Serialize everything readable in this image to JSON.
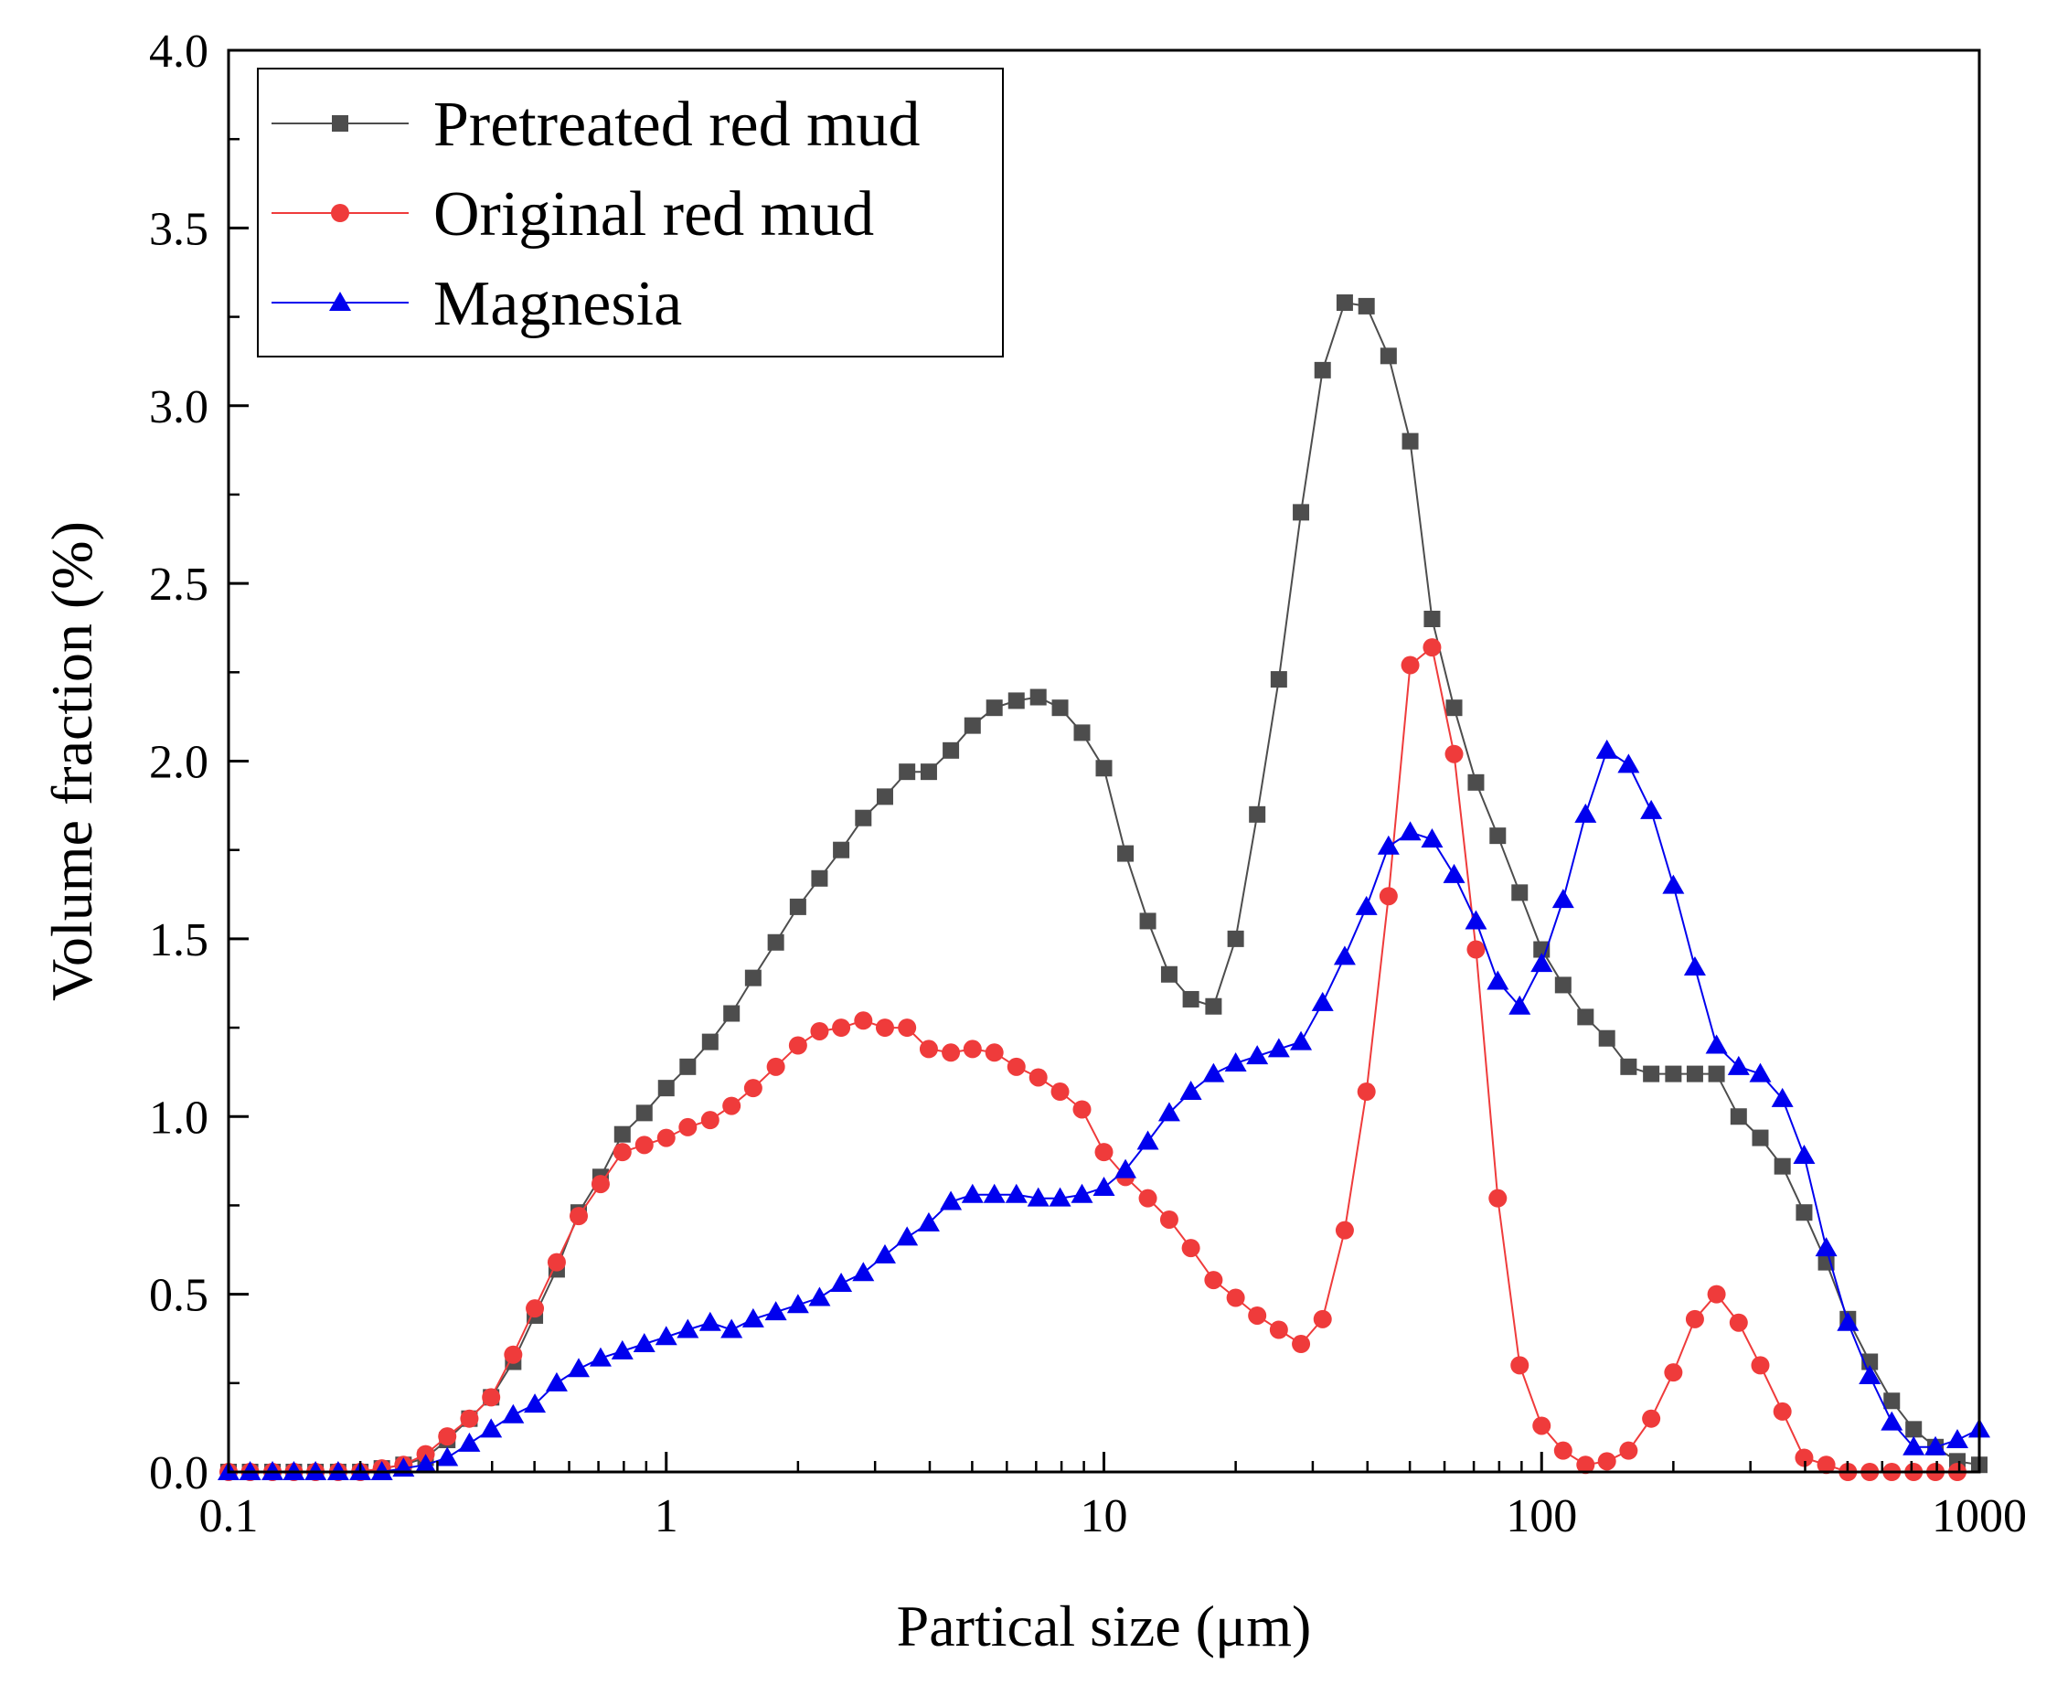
{
  "chart_data": {
    "type": "line",
    "title": "",
    "xlabel": "Partical size (μm)",
    "ylabel": "Volume fraction (%)",
    "xscale": "log",
    "xlim": [
      0.1,
      1000
    ],
    "ylim": [
      0,
      4.0
    ],
    "xticks": [
      0.1,
      1,
      10,
      100,
      1000
    ],
    "xtick_labels": [
      "0.1",
      "1",
      "10",
      "100",
      "1000"
    ],
    "yticks": [
      0,
      0.5,
      1.0,
      1.5,
      2.0,
      2.5,
      3.0,
      3.5,
      4.0
    ],
    "ytick_labels": [
      "0.0",
      "0.5",
      "1.0",
      "1.5",
      "2.0",
      "2.5",
      "3.0",
      "3.5",
      "4.0"
    ],
    "grid": false,
    "legend_position": "top-left",
    "series": [
      {
        "name": "Pretreated red mud",
        "color": "#4d4d4d",
        "marker": "square",
        "points": [
          [
            0.1,
            0
          ],
          [
            0.112,
            0
          ],
          [
            0.126,
            0
          ],
          [
            0.141,
            0
          ],
          [
            0.158,
            0
          ],
          [
            0.178,
            0
          ],
          [
            0.2,
            0
          ],
          [
            0.224,
            0.01
          ],
          [
            0.251,
            0.02
          ],
          [
            0.282,
            0.04
          ],
          [
            0.316,
            0.09
          ],
          [
            0.355,
            0.15
          ],
          [
            0.398,
            0.21
          ],
          [
            0.447,
            0.31
          ],
          [
            0.501,
            0.44
          ],
          [
            0.562,
            0.57
          ],
          [
            0.631,
            0.73
          ],
          [
            0.708,
            0.83
          ],
          [
            0.794,
            0.95
          ],
          [
            0.891,
            1.01
          ],
          [
            1,
            1.08
          ],
          [
            1.12,
            1.14
          ],
          [
            1.26,
            1.21
          ],
          [
            1.41,
            1.29
          ],
          [
            1.58,
            1.39
          ],
          [
            1.78,
            1.49
          ],
          [
            2,
            1.59
          ],
          [
            2.24,
            1.67
          ],
          [
            2.51,
            1.75
          ],
          [
            2.82,
            1.84
          ],
          [
            3.16,
            1.9
          ],
          [
            3.55,
            1.97
          ],
          [
            3.98,
            1.97
          ],
          [
            4.47,
            2.03
          ],
          [
            5.01,
            2.1
          ],
          [
            5.62,
            2.15
          ],
          [
            6.31,
            2.17
          ],
          [
            7.08,
            2.18
          ],
          [
            7.94,
            2.15
          ],
          [
            8.91,
            2.08
          ],
          [
            10,
            1.98
          ],
          [
            11.2,
            1.74
          ],
          [
            12.6,
            1.55
          ],
          [
            14.1,
            1.4
          ],
          [
            15.8,
            1.33
          ],
          [
            17.8,
            1.31
          ],
          [
            20,
            1.5
          ],
          [
            22.4,
            1.85
          ],
          [
            25.1,
            2.23
          ],
          [
            28.2,
            2.7
          ],
          [
            31.6,
            3.1
          ],
          [
            35.5,
            3.29
          ],
          [
            39.8,
            3.28
          ],
          [
            44.7,
            3.14
          ],
          [
            50.1,
            2.9
          ],
          [
            56.2,
            2.4
          ],
          [
            63.1,
            2.15
          ],
          [
            70.8,
            1.94
          ],
          [
            79.4,
            1.79
          ],
          [
            89.1,
            1.63
          ],
          [
            100,
            1.47
          ],
          [
            112,
            1.37
          ],
          [
            126,
            1.28
          ],
          [
            141,
            1.22
          ],
          [
            158,
            1.14
          ],
          [
            178,
            1.12
          ],
          [
            200,
            1.12
          ],
          [
            224,
            1.12
          ],
          [
            251,
            1.12
          ],
          [
            282,
            1.0
          ],
          [
            316,
            0.94
          ],
          [
            355,
            0.86
          ],
          [
            398,
            0.73
          ],
          [
            447,
            0.59
          ],
          [
            501,
            0.43
          ],
          [
            562,
            0.31
          ],
          [
            631,
            0.2
          ],
          [
            708,
            0.12
          ],
          [
            794,
            0.07
          ],
          [
            891,
            0.03
          ],
          [
            1000,
            0.02
          ]
        ]
      },
      {
        "name": "Original red mud",
        "color": "#ef3b3b",
        "marker": "circle",
        "points": [
          [
            0.1,
            0
          ],
          [
            0.112,
            0
          ],
          [
            0.126,
            0
          ],
          [
            0.141,
            0
          ],
          [
            0.158,
            0
          ],
          [
            0.178,
            0
          ],
          [
            0.2,
            0
          ],
          [
            0.224,
            0.01
          ],
          [
            0.251,
            0.02
          ],
          [
            0.282,
            0.05
          ],
          [
            0.316,
            0.1
          ],
          [
            0.355,
            0.15
          ],
          [
            0.398,
            0.21
          ],
          [
            0.447,
            0.33
          ],
          [
            0.501,
            0.46
          ],
          [
            0.562,
            0.59
          ],
          [
            0.631,
            0.72
          ],
          [
            0.708,
            0.81
          ],
          [
            0.794,
            0.9
          ],
          [
            0.891,
            0.92
          ],
          [
            1,
            0.94
          ],
          [
            1.12,
            0.97
          ],
          [
            1.26,
            0.99
          ],
          [
            1.41,
            1.03
          ],
          [
            1.58,
            1.08
          ],
          [
            1.78,
            1.14
          ],
          [
            2,
            1.2
          ],
          [
            2.24,
            1.24
          ],
          [
            2.51,
            1.25
          ],
          [
            2.82,
            1.27
          ],
          [
            3.16,
            1.25
          ],
          [
            3.55,
            1.25
          ],
          [
            3.98,
            1.19
          ],
          [
            4.47,
            1.18
          ],
          [
            5.01,
            1.19
          ],
          [
            5.62,
            1.18
          ],
          [
            6.31,
            1.14
          ],
          [
            7.08,
            1.11
          ],
          [
            7.94,
            1.07
          ],
          [
            8.91,
            1.02
          ],
          [
            10,
            0.9
          ],
          [
            11.2,
            0.83
          ],
          [
            12.6,
            0.77
          ],
          [
            14.1,
            0.71
          ],
          [
            15.8,
            0.63
          ],
          [
            17.8,
            0.54
          ],
          [
            20,
            0.49
          ],
          [
            22.4,
            0.44
          ],
          [
            25.1,
            0.4
          ],
          [
            28.2,
            0.36
          ],
          [
            31.6,
            0.43
          ],
          [
            35.5,
            0.68
          ],
          [
            39.8,
            1.07
          ],
          [
            44.7,
            1.62
          ],
          [
            50.1,
            2.27
          ],
          [
            56.2,
            2.32
          ],
          [
            63.1,
            2.02
          ],
          [
            70.8,
            1.47
          ],
          [
            79.4,
            0.77
          ],
          [
            89.1,
            0.3
          ],
          [
            100,
            0.13
          ],
          [
            112,
            0.06
          ],
          [
            126,
            0.02
          ],
          [
            141,
            0.03
          ],
          [
            158,
            0.06
          ],
          [
            178,
            0.15
          ],
          [
            200,
            0.28
          ],
          [
            224,
            0.43
          ],
          [
            251,
            0.5
          ],
          [
            282,
            0.42
          ],
          [
            316,
            0.3
          ],
          [
            355,
            0.17
          ],
          [
            398,
            0.04
          ],
          [
            447,
            0.02
          ],
          [
            501,
            0
          ],
          [
            562,
            0
          ],
          [
            631,
            0
          ],
          [
            708,
            0
          ],
          [
            794,
            0
          ],
          [
            891,
            0
          ]
        ]
      },
      {
        "name": "Magnesia",
        "color": "#0000ee",
        "marker": "triangle",
        "points": [
          [
            0.1,
            0
          ],
          [
            0.112,
            0
          ],
          [
            0.126,
            0
          ],
          [
            0.141,
            0
          ],
          [
            0.158,
            0
          ],
          [
            0.178,
            0
          ],
          [
            0.2,
            0
          ],
          [
            0.224,
            0
          ],
          [
            0.251,
            0.01
          ],
          [
            0.282,
            0.02
          ],
          [
            0.316,
            0.04
          ],
          [
            0.355,
            0.08
          ],
          [
            0.398,
            0.12
          ],
          [
            0.447,
            0.16
          ],
          [
            0.501,
            0.19
          ],
          [
            0.562,
            0.25
          ],
          [
            0.631,
            0.29
          ],
          [
            0.708,
            0.32
          ],
          [
            0.794,
            0.34
          ],
          [
            0.891,
            0.36
          ],
          [
            1,
            0.38
          ],
          [
            1.12,
            0.4
          ],
          [
            1.26,
            0.42
          ],
          [
            1.41,
            0.4
          ],
          [
            1.58,
            0.43
          ],
          [
            1.78,
            0.45
          ],
          [
            2,
            0.47
          ],
          [
            2.24,
            0.49
          ],
          [
            2.51,
            0.53
          ],
          [
            2.82,
            0.56
          ],
          [
            3.16,
            0.61
          ],
          [
            3.55,
            0.66
          ],
          [
            3.98,
            0.7
          ],
          [
            4.47,
            0.76
          ],
          [
            5.01,
            0.78
          ],
          [
            5.62,
            0.78
          ],
          [
            6.31,
            0.78
          ],
          [
            7.08,
            0.77
          ],
          [
            7.94,
            0.77
          ],
          [
            8.91,
            0.78
          ],
          [
            10,
            0.8
          ],
          [
            11.2,
            0.85
          ],
          [
            12.6,
            0.93
          ],
          [
            14.1,
            1.01
          ],
          [
            15.8,
            1.07
          ],
          [
            17.8,
            1.12
          ],
          [
            20,
            1.15
          ],
          [
            22.4,
            1.17
          ],
          [
            25.1,
            1.19
          ],
          [
            28.2,
            1.21
          ],
          [
            31.6,
            1.32
          ],
          [
            35.5,
            1.45
          ],
          [
            39.8,
            1.59
          ],
          [
            44.7,
            1.76
          ],
          [
            50.1,
            1.8
          ],
          [
            56.2,
            1.78
          ],
          [
            63.1,
            1.68
          ],
          [
            70.8,
            1.55
          ],
          [
            79.4,
            1.38
          ],
          [
            89.1,
            1.31
          ],
          [
            100,
            1.43
          ],
          [
            112,
            1.61
          ],
          [
            126,
            1.85
          ],
          [
            141,
            2.03
          ],
          [
            158,
            1.99
          ],
          [
            178,
            1.86
          ],
          [
            200,
            1.65
          ],
          [
            224,
            1.42
          ],
          [
            251,
            1.2
          ],
          [
            282,
            1.14
          ],
          [
            316,
            1.12
          ],
          [
            355,
            1.05
          ],
          [
            398,
            0.89
          ],
          [
            447,
            0.63
          ],
          [
            501,
            0.42
          ],
          [
            562,
            0.27
          ],
          [
            631,
            0.14
          ],
          [
            708,
            0.07
          ],
          [
            794,
            0.07
          ],
          [
            891,
            0.09
          ],
          [
            1000,
            0.12
          ]
        ]
      }
    ]
  }
}
